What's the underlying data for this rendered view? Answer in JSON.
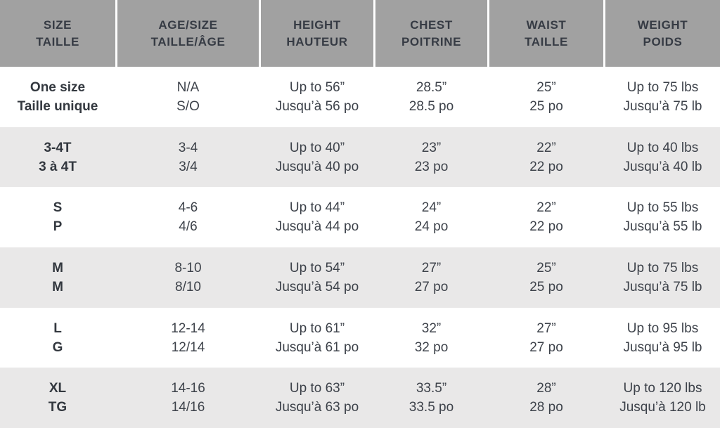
{
  "colors": {
    "header_background": "#a1a1a1",
    "header_text": "#363b44",
    "row_white": "#ffffff",
    "row_gray": "#e9e8e8",
    "body_text": "#3d424a"
  },
  "chart_data": {
    "type": "table",
    "title": "Size chart (bilingual English/French)",
    "columns": [
      {
        "en": "SIZE",
        "fr": "TAILLE"
      },
      {
        "en": "AGE/SIZE",
        "fr": "TAILLE/ÂGE"
      },
      {
        "en": "HEIGHT",
        "fr": "HAUTEUR"
      },
      {
        "en": "CHEST",
        "fr": "POITRINE"
      },
      {
        "en": "WAIST",
        "fr": "TAILLE"
      },
      {
        "en": "WEIGHT",
        "fr": "POIDS"
      }
    ],
    "rows": [
      {
        "cells": [
          {
            "en": "One size",
            "fr": "Taille unique"
          },
          {
            "en": "N/A",
            "fr": "S/O"
          },
          {
            "en": "Up to 56”",
            "fr": "Jusqu’à 56 po"
          },
          {
            "en": "28.5”",
            "fr": "28.5 po"
          },
          {
            "en": "25”",
            "fr": "25 po"
          },
          {
            "en": "Up to 75 lbs",
            "fr": "Jusqu’à 75 lb"
          }
        ]
      },
      {
        "cells": [
          {
            "en": "3-4T",
            "fr": "3 à 4T"
          },
          {
            "en": "3-4",
            "fr": "3/4"
          },
          {
            "en": "Up to 40”",
            "fr": "Jusqu’à 40 po"
          },
          {
            "en": "23”",
            "fr": "23 po"
          },
          {
            "en": "22”",
            "fr": "22 po"
          },
          {
            "en": "Up to 40 lbs",
            "fr": "Jusqu’à 40 lb"
          }
        ]
      },
      {
        "cells": [
          {
            "en": "S",
            "fr": "P"
          },
          {
            "en": "4-6",
            "fr": "4/6"
          },
          {
            "en": "Up to 44”",
            "fr": "Jusqu’à 44 po"
          },
          {
            "en": "24”",
            "fr": "24 po"
          },
          {
            "en": "22”",
            "fr": "22 po"
          },
          {
            "en": "Up to 55 lbs",
            "fr": "Jusqu’à 55 lb"
          }
        ]
      },
      {
        "cells": [
          {
            "en": "M",
            "fr": "M"
          },
          {
            "en": "8-10",
            "fr": "8/10"
          },
          {
            "en": "Up to 54”",
            "fr": "Jusqu’à 54 po"
          },
          {
            "en": "27”",
            "fr": "27 po"
          },
          {
            "en": "25”",
            "fr": "25 po"
          },
          {
            "en": "Up to 75 lbs",
            "fr": "Jusqu’à 75 lb"
          }
        ]
      },
      {
        "cells": [
          {
            "en": "L",
            "fr": "G"
          },
          {
            "en": "12-14",
            "fr": "12/14"
          },
          {
            "en": "Up to 61”",
            "fr": "Jusqu’à 61 po"
          },
          {
            "en": "32”",
            "fr": "32 po"
          },
          {
            "en": "27”",
            "fr": "27 po"
          },
          {
            "en": "Up to 95 lbs",
            "fr": "Jusqu’à 95 lb"
          }
        ]
      },
      {
        "cells": [
          {
            "en": "XL",
            "fr": "TG"
          },
          {
            "en": "14-16",
            "fr": "14/16"
          },
          {
            "en": "Up to 63”",
            "fr": "Jusqu’à 63 po"
          },
          {
            "en": "33.5”",
            "fr": "33.5 po"
          },
          {
            "en": "28”",
            "fr": "28 po"
          },
          {
            "en": "Up to 120 lbs",
            "fr": "Jusqu’à 120 lb"
          }
        ]
      }
    ]
  }
}
